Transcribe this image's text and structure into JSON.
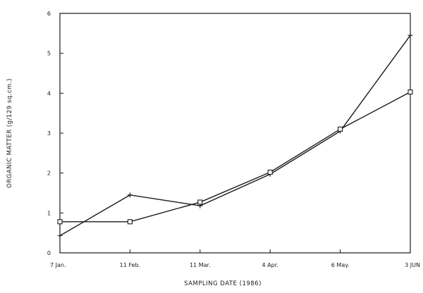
{
  "chart_data": {
    "type": "line",
    "categories": [
      "7 Jan.",
      "11 Feb.",
      "11 Mar.",
      "4 Apr.",
      "6 May.",
      "3 JUN"
    ],
    "xlabel": "SAMPLING DATE (1986)",
    "ylabel": "ORGANIC MATTER (g/129 sq.cm.)",
    "ylim": [
      0,
      6
    ],
    "yticks": [
      0,
      1,
      2,
      3,
      4,
      5,
      6
    ],
    "grid": false,
    "series": [
      {
        "marker": "plus",
        "values": [
          0.43,
          1.45,
          1.18,
          1.97,
          3.05,
          5.45
        ]
      },
      {
        "marker": "square",
        "values": [
          0.78,
          0.78,
          1.27,
          2.02,
          3.1,
          4.03
        ]
      }
    ]
  }
}
